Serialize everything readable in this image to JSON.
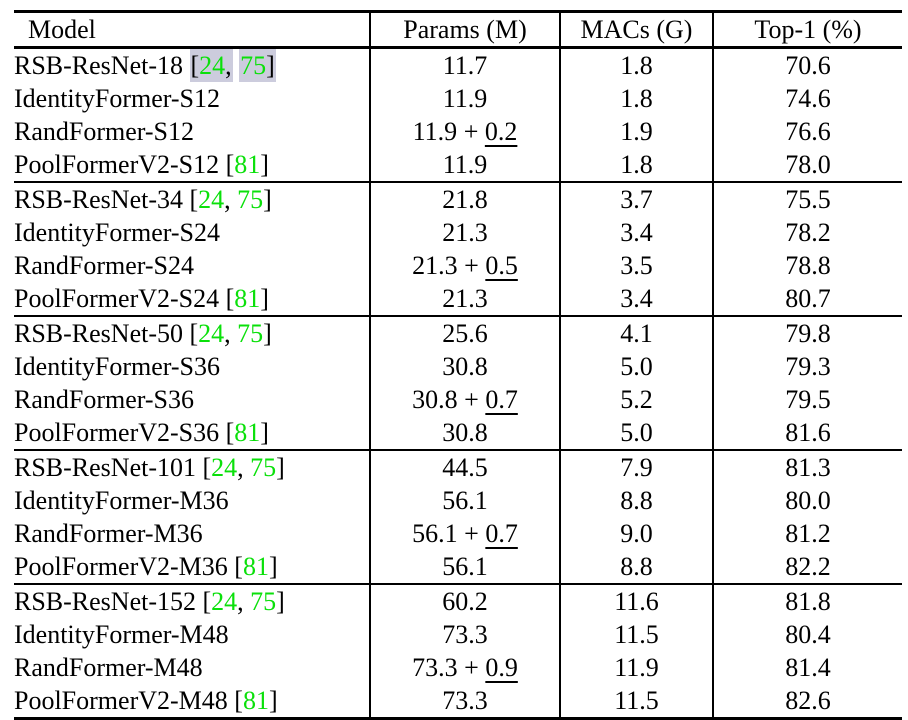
{
  "table": {
    "headers": [
      "Model",
      "Params (M)",
      "MACs (G)",
      "Top-1 (%)"
    ],
    "colors": {
      "citation_green": "#0ae00a",
      "link_highlight_bg": "#ccccdd",
      "text": "#000000",
      "rule": "#000000"
    },
    "sections": [
      {
        "rows": [
          {
            "model": "RSB-ResNet-18",
            "cite": {
              "refs": [
                "24",
                "75"
              ],
              "highlighted": true
            },
            "params": "11.7",
            "params_add": null,
            "macs": "1.8",
            "top1": "70.6"
          },
          {
            "model": "IdentityFormer-S12",
            "cite": null,
            "params": "11.9",
            "params_add": null,
            "macs": "1.8",
            "top1": "74.6"
          },
          {
            "model": "RandFormer-S12",
            "cite": null,
            "params": "11.9",
            "params_add": "0.2",
            "macs": "1.9",
            "top1": "76.6"
          },
          {
            "model": "PoolFormerV2-S12",
            "cite": {
              "refs": [
                "81"
              ],
              "highlighted": false
            },
            "params": "11.9",
            "params_add": null,
            "macs": "1.8",
            "top1": "78.0"
          }
        ]
      },
      {
        "rows": [
          {
            "model": "RSB-ResNet-34",
            "cite": {
              "refs": [
                "24",
                "75"
              ],
              "highlighted": false
            },
            "params": "21.8",
            "params_add": null,
            "macs": "3.7",
            "top1": "75.5"
          },
          {
            "model": "IdentityFormer-S24",
            "cite": null,
            "params": "21.3",
            "params_add": null,
            "macs": "3.4",
            "top1": "78.2"
          },
          {
            "model": "RandFormer-S24",
            "cite": null,
            "params": "21.3",
            "params_add": "0.5",
            "macs": "3.5",
            "top1": "78.8"
          },
          {
            "model": "PoolFormerV2-S24",
            "cite": {
              "refs": [
                "81"
              ],
              "highlighted": false
            },
            "params": "21.3",
            "params_add": null,
            "macs": "3.4",
            "top1": "80.7"
          }
        ]
      },
      {
        "rows": [
          {
            "model": "RSB-ResNet-50",
            "cite": {
              "refs": [
                "24",
                "75"
              ],
              "highlighted": false
            },
            "params": "25.6",
            "params_add": null,
            "macs": "4.1",
            "top1": "79.8"
          },
          {
            "model": "IdentityFormer-S36",
            "cite": null,
            "params": "30.8",
            "params_add": null,
            "macs": "5.0",
            "top1": "79.3"
          },
          {
            "model": "RandFormer-S36",
            "cite": null,
            "params": "30.8",
            "params_add": "0.7",
            "macs": "5.2",
            "top1": "79.5"
          },
          {
            "model": "PoolFormerV2-S36",
            "cite": {
              "refs": [
                "81"
              ],
              "highlighted": false
            },
            "params": "30.8",
            "params_add": null,
            "macs": "5.0",
            "top1": "81.6"
          }
        ]
      },
      {
        "rows": [
          {
            "model": "RSB-ResNet-101",
            "cite": {
              "refs": [
                "24",
                "75"
              ],
              "highlighted": false
            },
            "params": "44.5",
            "params_add": null,
            "macs": "7.9",
            "top1": "81.3"
          },
          {
            "model": "IdentityFormer-M36",
            "cite": null,
            "params": "56.1",
            "params_add": null,
            "macs": "8.8",
            "top1": "80.0"
          },
          {
            "model": "RandFormer-M36",
            "cite": null,
            "params": "56.1",
            "params_add": "0.7",
            "macs": "9.0",
            "top1": "81.2"
          },
          {
            "model": "PoolFormerV2-M36",
            "cite": {
              "refs": [
                "81"
              ],
              "highlighted": false
            },
            "params": "56.1",
            "params_add": null,
            "macs": "8.8",
            "top1": "82.2"
          }
        ]
      },
      {
        "rows": [
          {
            "model": "RSB-ResNet-152",
            "cite": {
              "refs": [
                "24",
                "75"
              ],
              "highlighted": false
            },
            "params": "60.2",
            "params_add": null,
            "macs": "11.6",
            "top1": "81.8"
          },
          {
            "model": "IdentityFormer-M48",
            "cite": null,
            "params": "73.3",
            "params_add": null,
            "macs": "11.5",
            "top1": "80.4"
          },
          {
            "model": "RandFormer-M48",
            "cite": null,
            "params": "73.3",
            "params_add": "0.9",
            "macs": "11.9",
            "top1": "81.4"
          },
          {
            "model": "PoolFormerV2-M48",
            "cite": {
              "refs": [
                "81"
              ],
              "highlighted": false
            },
            "params": "73.3",
            "params_add": null,
            "macs": "11.5",
            "top1": "82.6"
          }
        ]
      }
    ]
  }
}
